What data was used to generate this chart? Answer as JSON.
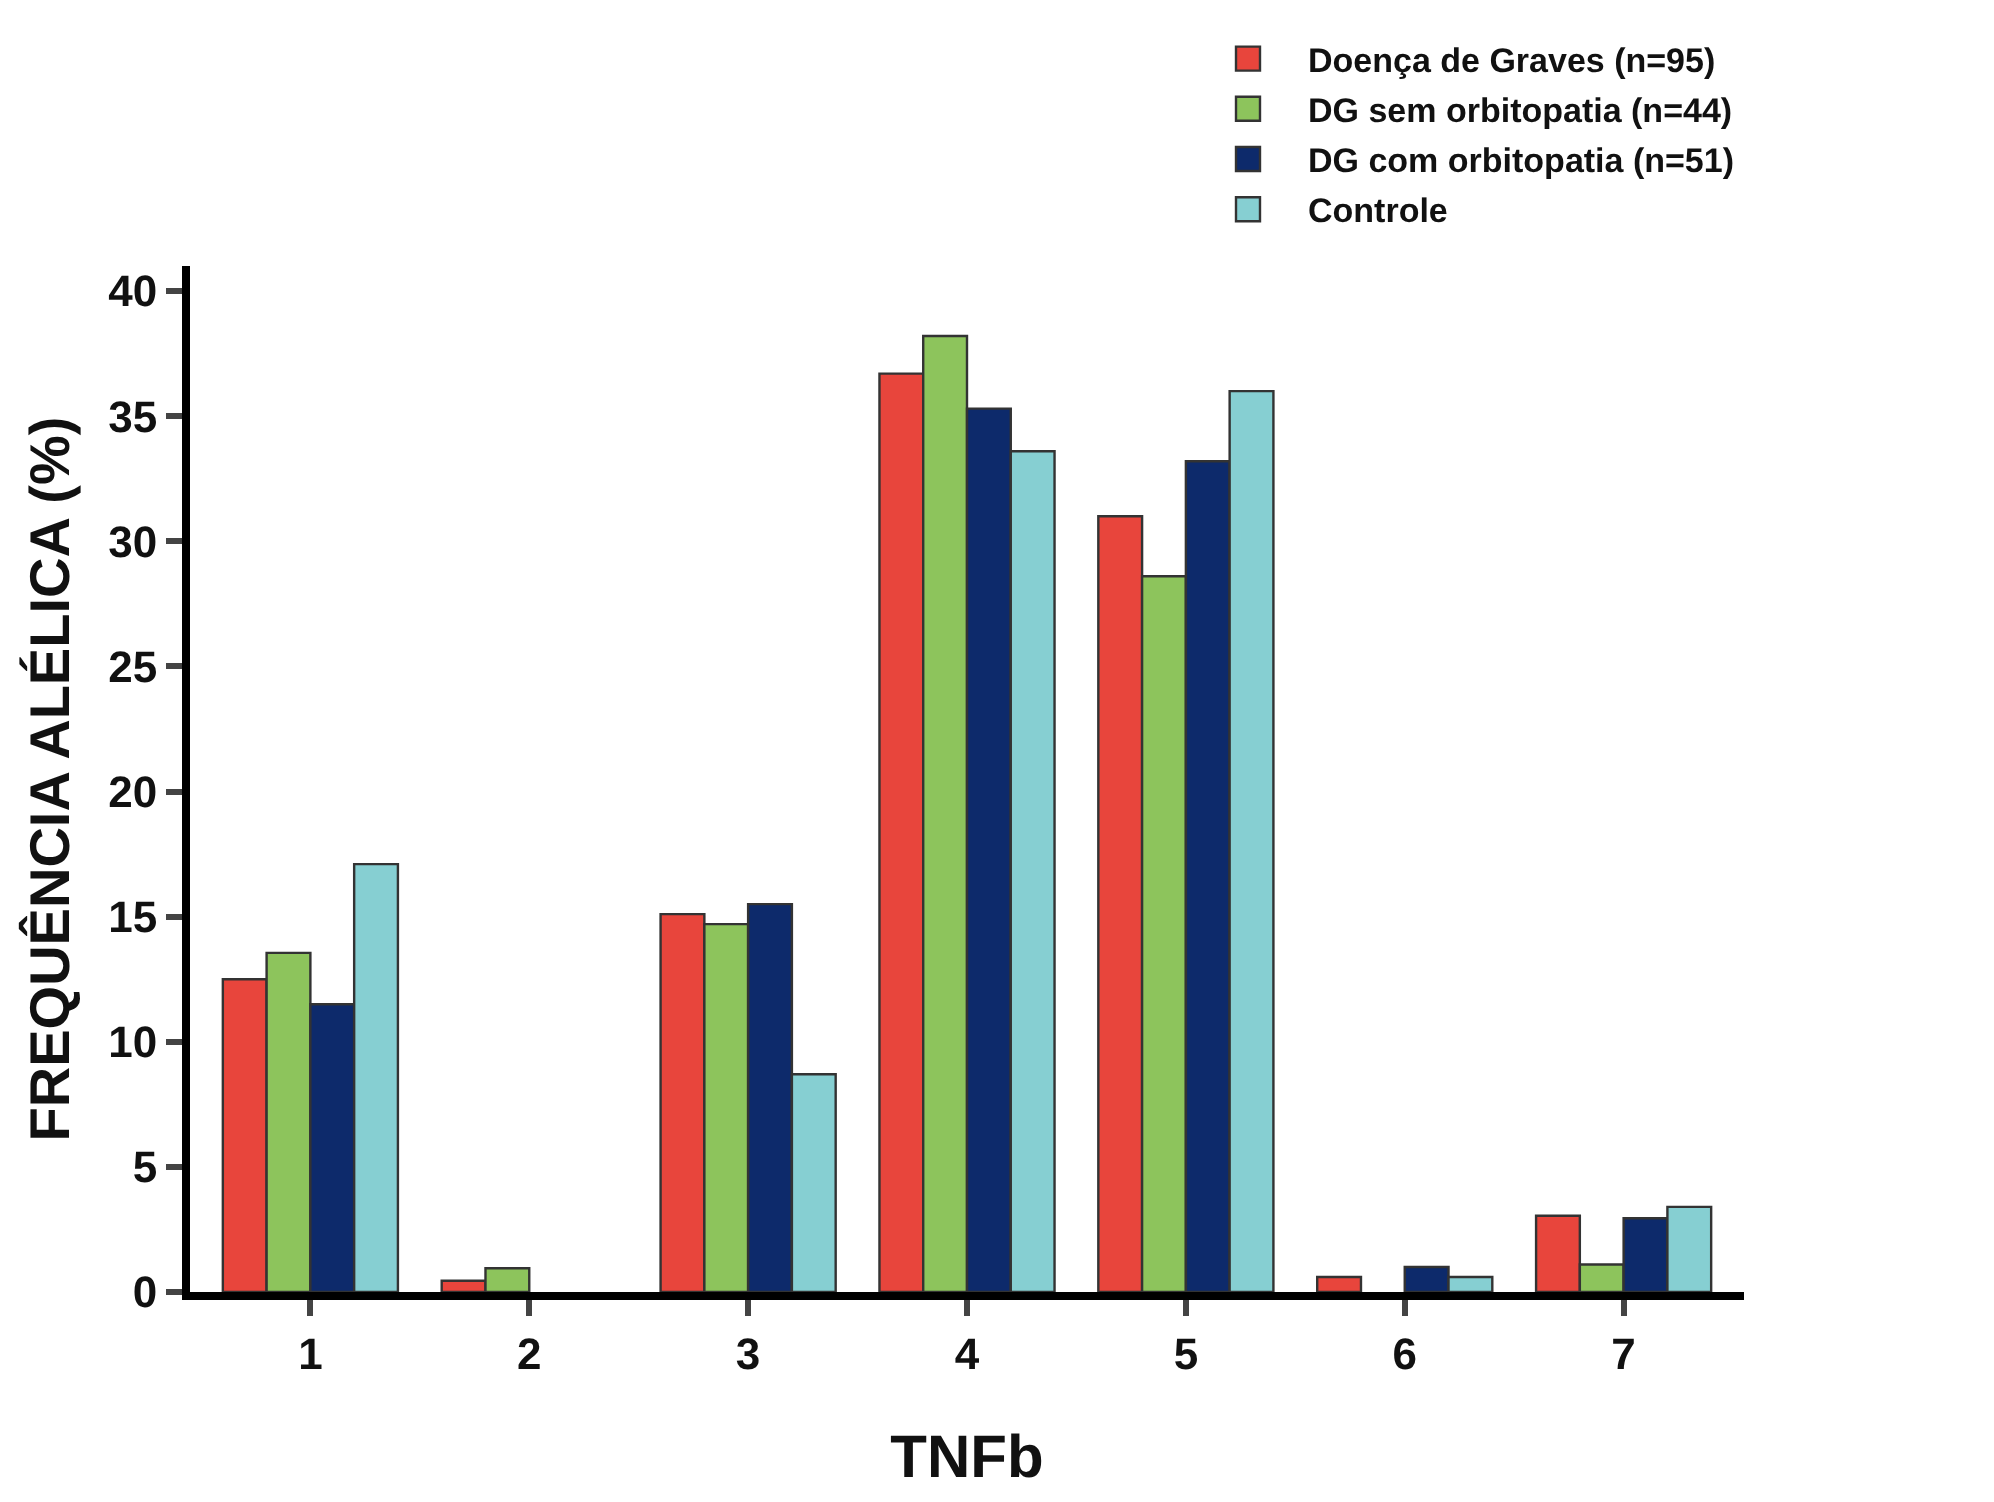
{
  "chart_data": {
    "type": "bar",
    "xlabel": "TNFb",
    "ylabel": "FREQUÊNCIA ALÉLICA (%)",
    "categories": [
      "1",
      "2",
      "3",
      "4",
      "5",
      "6",
      "7"
    ],
    "series": [
      {
        "name": "Doença de Graves (n=95)",
        "color": "#e8453c",
        "values": [
          12.5,
          0.45,
          15.1,
          36.7,
          31.0,
          0.6,
          3.05
        ]
      },
      {
        "name": "DG sem orbitopatia (n=44)",
        "color": "#8dc45c",
        "values": [
          13.55,
          0.95,
          14.7,
          38.2,
          28.6,
          0,
          1.1
        ]
      },
      {
        "name": "DG com orbitopatia (n=51)",
        "color": "#0d2a6b",
        "values": [
          11.5,
          0,
          15.5,
          35.3,
          33.2,
          1.0,
          2.95
        ]
      },
      {
        "name": "Controle",
        "color": "#86cfd2",
        "values": [
          17.1,
          0,
          8.7,
          33.6,
          36.0,
          0.6,
          3.4
        ]
      }
    ],
    "ylim": [
      0,
      41
    ],
    "yticks": [
      0,
      5,
      10,
      15,
      20,
      25,
      30,
      35,
      40
    ],
    "grid": false,
    "legend": "top right"
  }
}
